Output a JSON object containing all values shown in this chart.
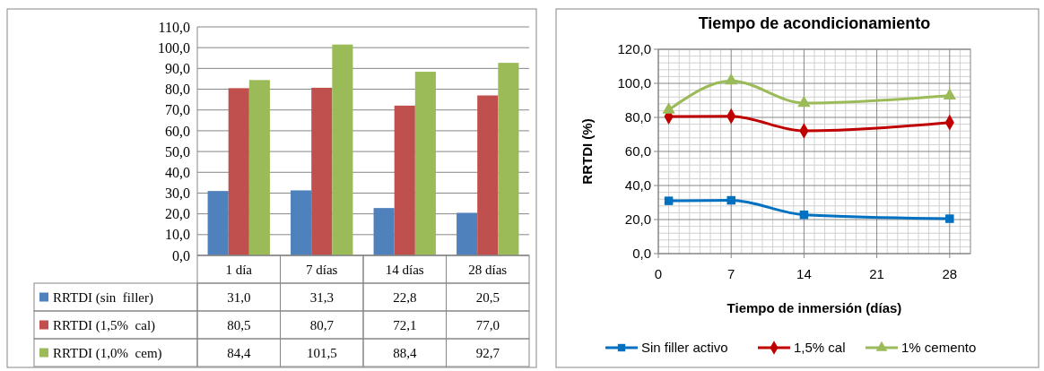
{
  "chart_data": [
    {
      "type": "bar",
      "categories": [
        "1 día",
        "7 días",
        "14 días",
        "28 días"
      ],
      "series": [
        {
          "name": "RRTDI (sin  filler)",
          "color": "#4f81bd",
          "values": [
            31.0,
            31.3,
            22.8,
            20.5
          ],
          "value_labels": [
            "31,0",
            "31,3",
            "22,8",
            "20,5"
          ]
        },
        {
          "name": "RRTDI (1,5%  cal)",
          "color": "#c0504d",
          "values": [
            80.5,
            80.7,
            72.1,
            77.0
          ],
          "value_labels": [
            "80,5",
            "80,7",
            "72,1",
            "77,0"
          ]
        },
        {
          "name": "RRTDI (1,0%  cem)",
          "color": "#9bbb59",
          "values": [
            84.4,
            101.5,
            88.4,
            92.7
          ],
          "value_labels": [
            "84,4",
            "101,5",
            "88,4",
            "92,7"
          ]
        }
      ],
      "ylim": [
        0,
        110
      ],
      "yticks": [
        {
          "value": 0,
          "label": "0,0"
        },
        {
          "value": 10,
          "label": "10,0"
        },
        {
          "value": 20,
          "label": "20,0"
        },
        {
          "value": 30,
          "label": "30,0"
        },
        {
          "value": 40,
          "label": "40,0"
        },
        {
          "value": 50,
          "label": "50,0"
        },
        {
          "value": 60,
          "label": "60,0"
        },
        {
          "value": 70,
          "label": "70,0"
        },
        {
          "value": 80,
          "label": "80,0"
        },
        {
          "value": 90,
          "label": "90,0"
        },
        {
          "value": 100,
          "label": "100,0"
        },
        {
          "value": 110,
          "label": "110,0"
        }
      ],
      "grid": "y",
      "legend": "bottom"
    },
    {
      "type": "line",
      "title": "Tiempo de acondicionamiento",
      "xlabel": "Tiempo de inmersión (días)",
      "ylabel": "RRTDI (%)",
      "series": [
        {
          "name": "Sin filler activo",
          "color": "#0070c0",
          "x": [
            1,
            7,
            14,
            28
          ],
          "values": [
            31.0,
            31.3,
            22.8,
            20.5
          ],
          "marker": "square"
        },
        {
          "name": "1,5% cal",
          "color": "#c00000",
          "x": [
            1,
            7,
            14,
            28
          ],
          "values": [
            80.5,
            80.7,
            72.1,
            77.0
          ],
          "marker": "diamond"
        },
        {
          "name": "1% cemento",
          "color": "#9bbb59",
          "x": [
            1,
            7,
            14,
            28
          ],
          "values": [
            84.4,
            101.5,
            88.4,
            92.7
          ],
          "marker": "triangle"
        }
      ],
      "xlim": [
        0,
        30
      ],
      "xticks": [
        0,
        7,
        14,
        21,
        28
      ],
      "ylim": [
        0,
        120
      ],
      "yticks": [
        {
          "value": 0,
          "label": "0,0"
        },
        {
          "value": 20,
          "label": "20,0"
        },
        {
          "value": 40,
          "label": "40,0"
        },
        {
          "value": 60,
          "label": "60,0"
        },
        {
          "value": 80,
          "label": "80,0"
        },
        {
          "value": 100,
          "label": "100,0"
        },
        {
          "value": 120,
          "label": "120,0"
        }
      ],
      "grid": true,
      "legend": "bottom"
    }
  ]
}
